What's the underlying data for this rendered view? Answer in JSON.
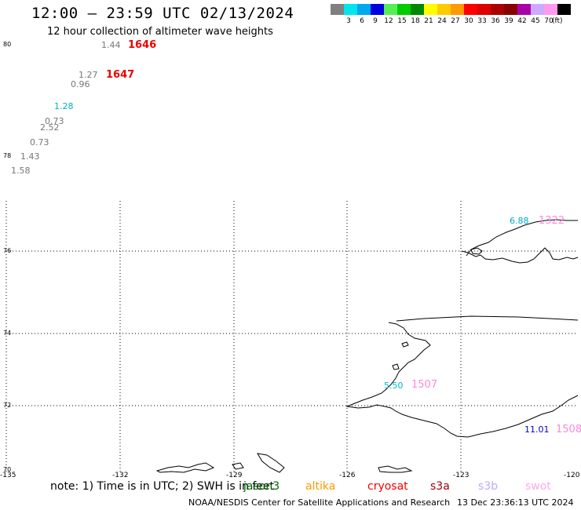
{
  "header": {
    "title": "12:00 – 23:59 UTC 02/13/2024",
    "subtitle": "12 hour collection of altimeter wave heights"
  },
  "legend": {
    "colors": [
      "#808080",
      "#00e5ee",
      "#00a8ee",
      "#0000dd",
      "#55ee55",
      "#00cc00",
      "#008800",
      "#ffff00",
      "#ffcc00",
      "#ff9900",
      "#ff0000",
      "#dd0000",
      "#aa0000",
      "#880000",
      "#aa00aa",
      "#ccaaff",
      "#ff99ee",
      "#000000"
    ],
    "labels": [
      "3",
      "6",
      "9",
      "12",
      "15",
      "18",
      "21",
      "24",
      "27",
      "30",
      "33",
      "36",
      "39",
      "42",
      "45",
      "70"
    ],
    "unit": "(ft)"
  },
  "axes": {
    "lat_labels": [
      "80",
      "78",
      "76",
      "74",
      "72",
      "70"
    ],
    "lon_labels": [
      "-135",
      "-132",
      "-129",
      "-126",
      "-123",
      "-120"
    ]
  },
  "wave_labels": [
    {
      "text": "1.44",
      "color": "#777777"
    },
    {
      "text": "1646",
      "color": "#ee0000"
    },
    {
      "text": "1.27",
      "color": "#777777"
    },
    {
      "text": "1647",
      "color": "#ee0000"
    },
    {
      "text": "0.96",
      "color": "#777777"
    },
    {
      "text": "1.28",
      "color": "#00b0c0"
    },
    {
      "text": "0.73",
      "color": "#777777"
    },
    {
      "text": "2.52",
      "color": "#777777"
    },
    {
      "text": "0.73",
      "color": "#777777"
    },
    {
      "text": "1.43",
      "color": "#777777"
    },
    {
      "text": "1.58",
      "color": "#777777"
    },
    {
      "text": "6.88",
      "color": "#00a8cc"
    },
    {
      "text": "1322",
      "color": "#ff88dd"
    },
    {
      "text": "5.50",
      "color": "#00b8cc"
    },
    {
      "text": "1507",
      "color": "#ff88dd"
    },
    {
      "text": "11.01",
      "color": "#0000cc"
    },
    {
      "text": "1508",
      "color": "#ff88dd"
    }
  ],
  "footer": {
    "note": "note: 1) Time is in UTC; 2) SWH is in feet",
    "satellites": [
      {
        "name": "jason3",
        "color": "#006600"
      },
      {
        "name": "altika",
        "color": "#ff9900"
      },
      {
        "name": "cryosat",
        "color": "#ee0000"
      },
      {
        "name": "s3a",
        "color": "#990000"
      },
      {
        "name": "s3b",
        "color": "#bbaaff"
      },
      {
        "name": "swot",
        "color": "#ffaaee"
      }
    ],
    "credit": "NOAA/NESDIS Center for Satellite Applications and Research",
    "timestamp": "13 Dec 23:36:13 UTC 2024"
  }
}
